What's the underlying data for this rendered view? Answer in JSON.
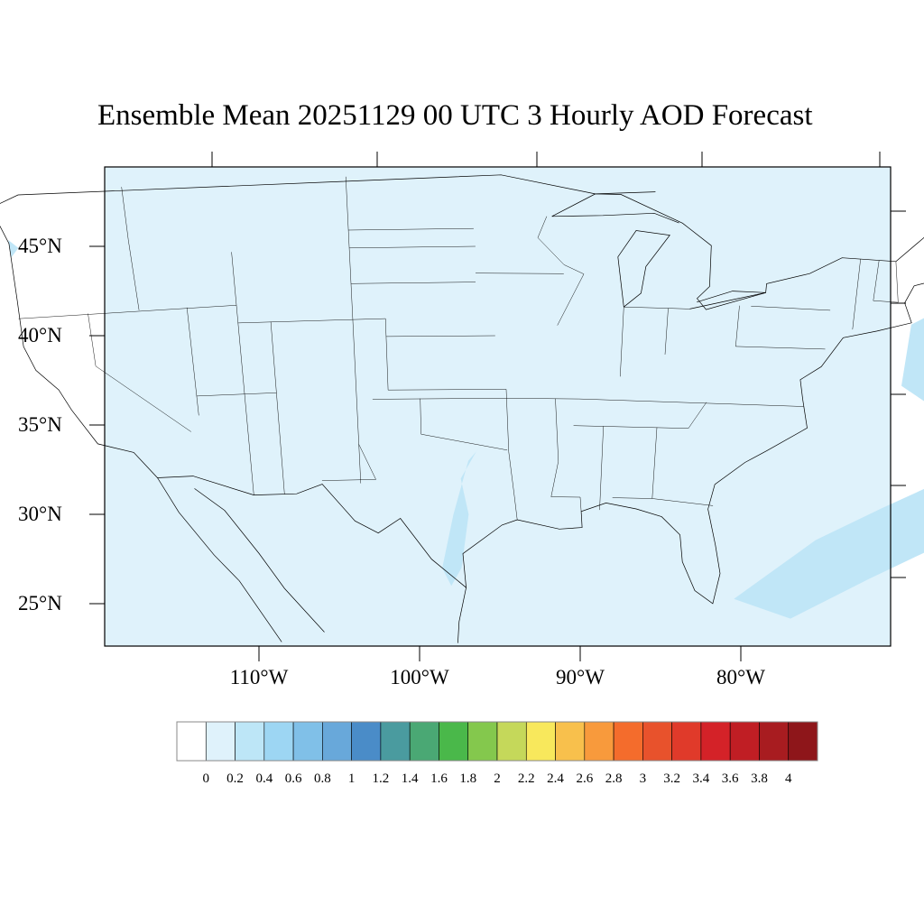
{
  "title": "Ensemble Mean 20251129 00 UTC 3 Hourly AOD Forecast",
  "lat_labels": [
    "45°N",
    "40°N",
    "35°N",
    "30°N",
    "25°N"
  ],
  "lon_labels": [
    "110°W",
    "100°W",
    "90°W",
    "80°W"
  ],
  "colorbar": {
    "labels": [
      "0",
      "0.2",
      "0.4",
      "0.6",
      "0.8",
      "1",
      "1.2",
      "1.4",
      "1.6",
      "1.8",
      "2",
      "2.2",
      "2.4",
      "2.6",
      "2.8",
      "3",
      "3.2",
      "3.4",
      "3.6",
      "3.8",
      "4"
    ],
    "colors": [
      "#ffffff",
      "#dff2fb",
      "#bde6f7",
      "#9dd6f3",
      "#80c0e8",
      "#68a8da",
      "#4a8cc8",
      "#4a9b9f",
      "#4aa874",
      "#4ab84a",
      "#84c84d",
      "#c5d85a",
      "#f8e85c",
      "#f8c04c",
      "#f89a3c",
      "#f46c2c",
      "#e8522c",
      "#e03a2a",
      "#d42228",
      "#c01e24",
      "#a81c20",
      "#8e161a"
    ]
  },
  "field": {
    "background_level_color": "#dff2fb",
    "patch_color": "#c0e6f7"
  }
}
